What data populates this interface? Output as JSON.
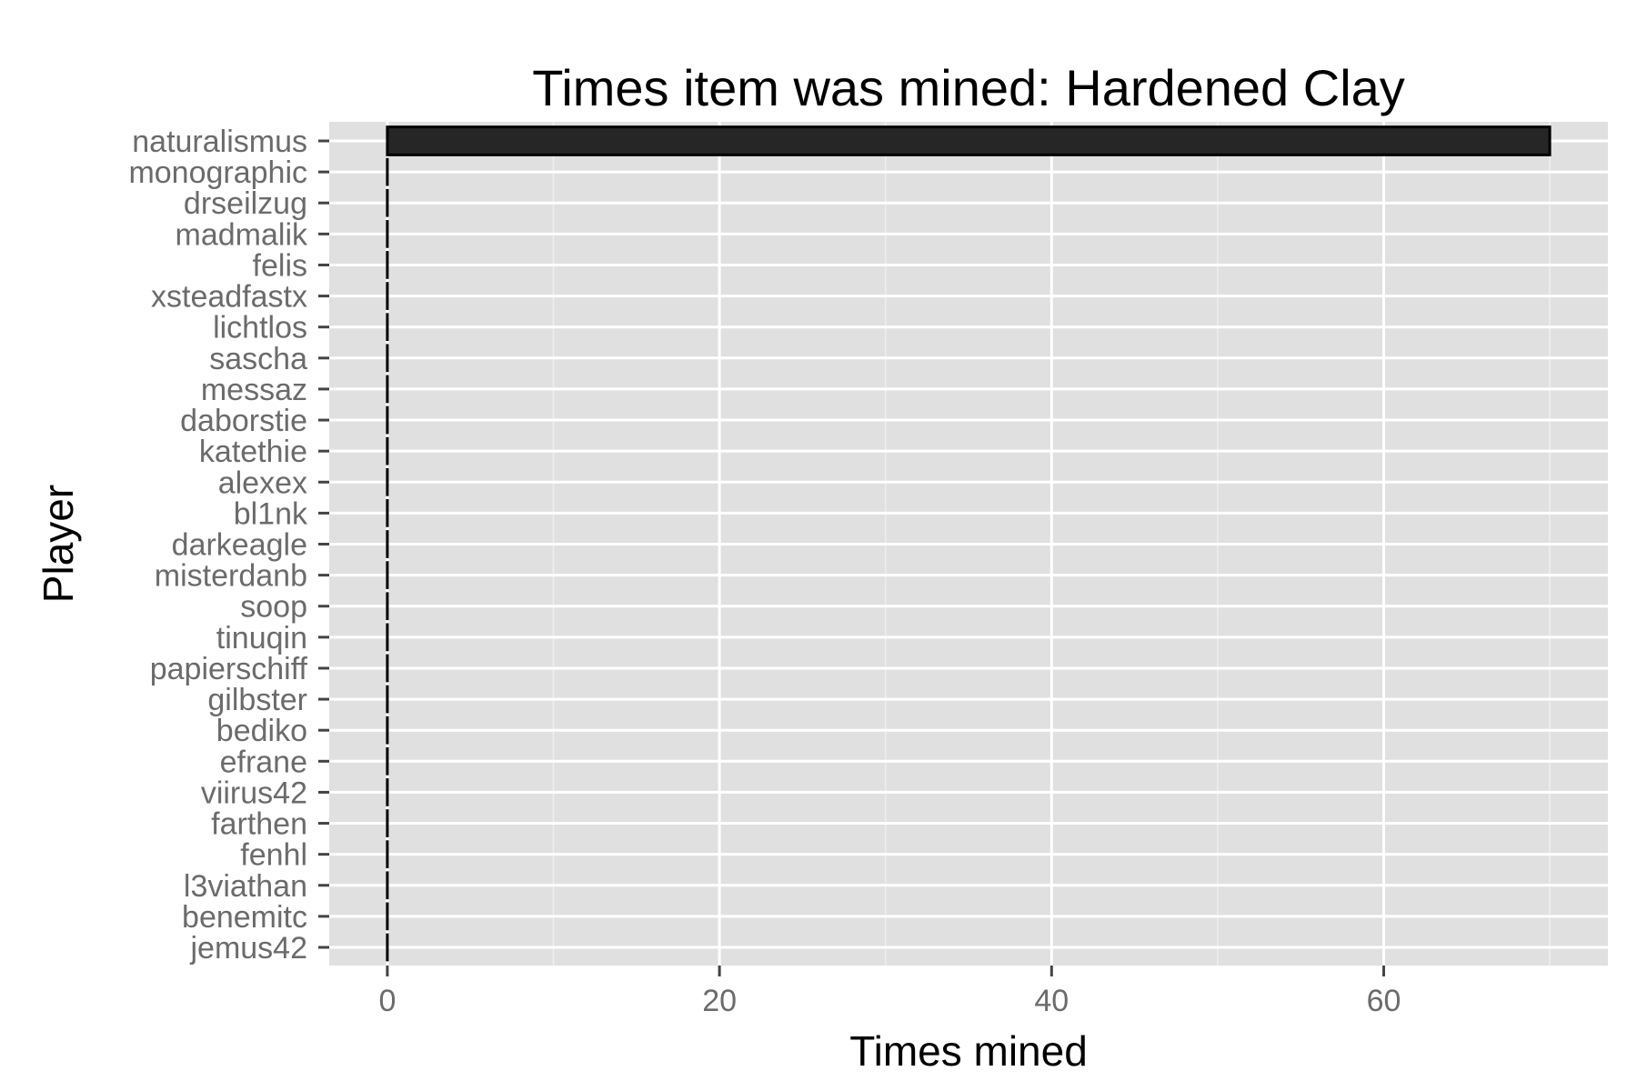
{
  "chart_data": {
    "type": "bar",
    "orientation": "horizontal",
    "title": "Times item was mined: Hardened Clay",
    "xlabel": "Times mined",
    "ylabel": "Player",
    "xlim": [
      -3.5,
      73.5
    ],
    "xticks": [
      0,
      20,
      40,
      60
    ],
    "xtick_labels": [
      "0",
      "20",
      "40",
      "60"
    ],
    "grid": true,
    "legend": "none",
    "colors": {
      "panel_background": "#e0e0e0",
      "grid_major": "#ffffff",
      "grid_minor": "#eeeeee",
      "bar_fill": "#262626",
      "bar_outline": "#000000",
      "tick_label": "#6b6b6b",
      "tick_mark": "#444444"
    },
    "categories": [
      "naturalismus",
      "monographic",
      "drseilzug",
      "madmalik",
      "felis",
      "xsteadfastx",
      "lichtlos",
      "sascha",
      "messaz",
      "daborstie",
      "katethie",
      "alexex",
      "bl1nk",
      "darkeagle",
      "misterdanb",
      "soop",
      "tinuqin",
      "papierschiff",
      "gilbster",
      "bediko",
      "efrane",
      "viirus42",
      "farthen",
      "fenhl",
      "l3viathan",
      "benemitc",
      "jemus42"
    ],
    "values": [
      70,
      0,
      0,
      0,
      0,
      0,
      0,
      0,
      0,
      0,
      0,
      0,
      0,
      0,
      0,
      0,
      0,
      0,
      0,
      0,
      0,
      0,
      0,
      0,
      0,
      0,
      0
    ]
  }
}
